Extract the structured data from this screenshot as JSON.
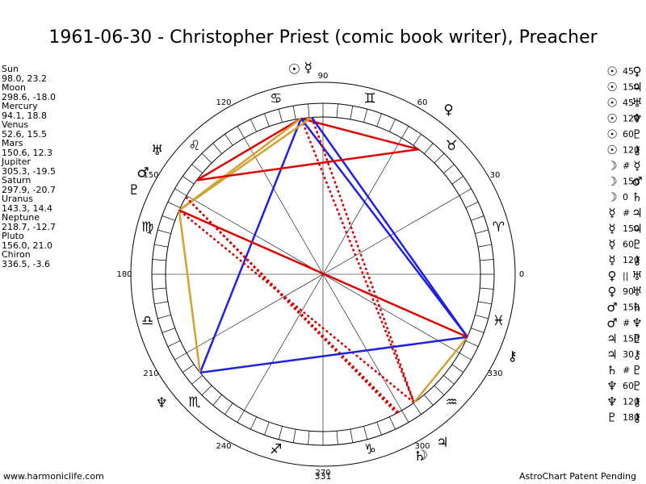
{
  "header": {
    "title": "1961-06-30 - Christopher Priest (comic book writer), Preacher"
  },
  "planets": [
    {
      "name": "Sun",
      "glyph": "☉",
      "position_label": "98.0, 23.2",
      "longitude": 98.0
    },
    {
      "name": "Moon",
      "glyph": "☽",
      "position_label": "298.6, -18.0",
      "longitude": 298.6
    },
    {
      "name": "Mercury",
      "glyph": "☿",
      "position_label": "94.1, 18.8",
      "longitude": 94.1
    },
    {
      "name": "Venus",
      "glyph": "♀",
      "position_label": "52.6, 15.5",
      "longitude": 52.6
    },
    {
      "name": "Mars",
      "glyph": "♂",
      "position_label": "150.6, 12.3",
      "longitude": 150.6
    },
    {
      "name": "Jupiter",
      "glyph": "♃",
      "position_label": "305.3, -19.5",
      "longitude": 305.3
    },
    {
      "name": "Saturn",
      "glyph": "♄",
      "position_label": "297.9, -20.7",
      "longitude": 297.9
    },
    {
      "name": "Uranus",
      "glyph": "♅",
      "position_label": "143.3, 14.4",
      "longitude": 143.3
    },
    {
      "name": "Neptune",
      "glyph": "♆",
      "position_label": "218.7, -12.7",
      "longitude": 218.7
    },
    {
      "name": "Pluto",
      "glyph": "♇",
      "position_label": "156.0, 21.0",
      "longitude": 156.0
    },
    {
      "name": "Chiron",
      "glyph": "⚷",
      "position_label": "336.5, -3.6",
      "longitude": 336.5
    }
  ],
  "aspects": [
    {
      "from": 0,
      "aspect": "45",
      "to": 3
    },
    {
      "from": 0,
      "aspect": "150",
      "to": 5
    },
    {
      "from": 0,
      "aspect": "45",
      "to": 7
    },
    {
      "from": 0,
      "aspect": "120",
      "to": 8
    },
    {
      "from": 0,
      "aspect": "60",
      "to": 9
    },
    {
      "from": 0,
      "aspect": "120",
      "to": 10
    },
    {
      "from": 1,
      "aspect": "#",
      "to": 2
    },
    {
      "from": 1,
      "aspect": "150",
      "to": 4
    },
    {
      "from": 1,
      "aspect": "0",
      "to": 6
    },
    {
      "from": 2,
      "aspect": "#",
      "to": 5
    },
    {
      "from": 2,
      "aspect": "150",
      "to": 5
    },
    {
      "from": 2,
      "aspect": "60",
      "to": 9
    },
    {
      "from": 2,
      "aspect": "120",
      "to": 10
    },
    {
      "from": 3,
      "aspect": "||",
      "to": 7
    },
    {
      "from": 3,
      "aspect": "90",
      "to": 7
    },
    {
      "from": 4,
      "aspect": "150",
      "to": 6
    },
    {
      "from": 4,
      "aspect": "#",
      "to": 8
    },
    {
      "from": 5,
      "aspect": "150",
      "to": 9
    },
    {
      "from": 5,
      "aspect": "30",
      "to": 10
    },
    {
      "from": 6,
      "aspect": "#",
      "to": 9
    },
    {
      "from": 8,
      "aspect": "60",
      "to": 9
    },
    {
      "from": 8,
      "aspect": "120",
      "to": 10
    },
    {
      "from": 9,
      "aspect": "180",
      "to": 10
    }
  ],
  "aspect_styles": {
    "30": {
      "color": "#d4a030",
      "dash": false
    },
    "45": {
      "color": "#e00000",
      "dash": false
    },
    "60": {
      "color": "#d4a030",
      "dash": false
    },
    "90": {
      "color": "#e00000",
      "dash": false
    },
    "120": {
      "color": "#2020e0",
      "dash": false
    },
    "150": {
      "color": "#d00000",
      "dash": true
    },
    "180": {
      "color": "#e00000",
      "dash": false
    }
  },
  "wheel": {
    "degree_labels": [
      0,
      30,
      60,
      90,
      120,
      150,
      180,
      210,
      240,
      270,
      300,
      330
    ],
    "signs": [
      "♈",
      "♉",
      "♊",
      "♋",
      "♌",
      "♍",
      "♎",
      "♏",
      "♐",
      "♑",
      "♒",
      "♓"
    ]
  },
  "footer": {
    "left": "www.harmoniclife.com",
    "center": "331",
    "right": "AstroChart Patent Pending"
  }
}
